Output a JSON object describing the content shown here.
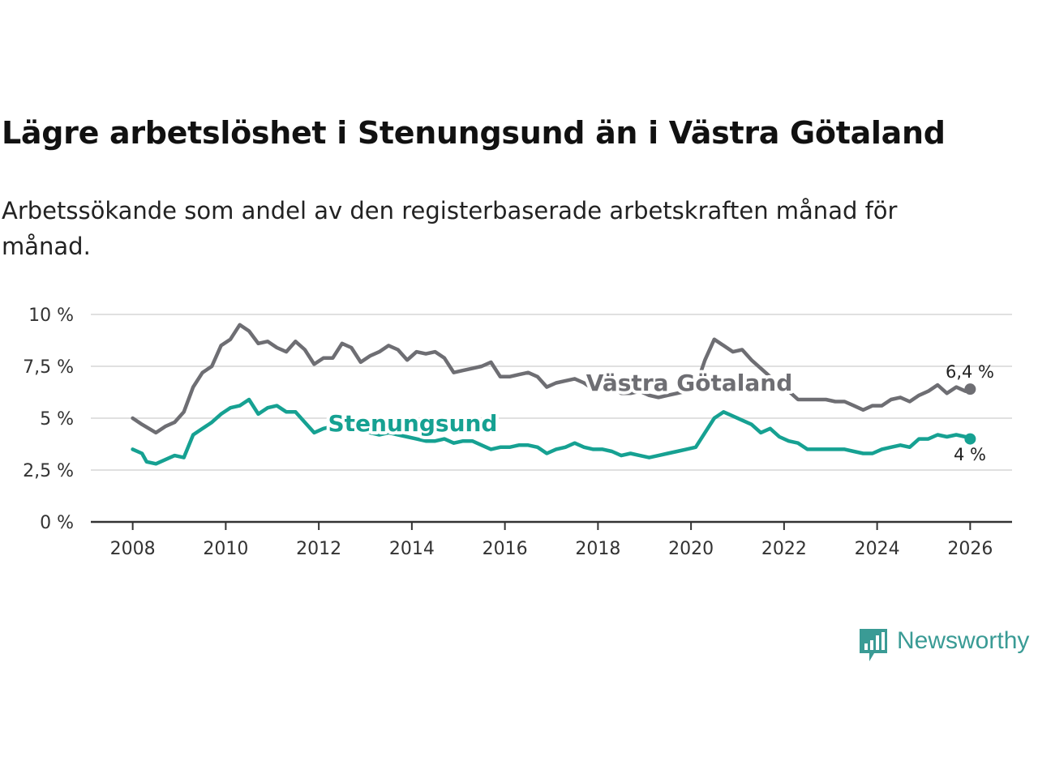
{
  "header": {
    "title": "Lägre arbetslöshet i Stenungsund än i Västra Götaland",
    "subtitle": "Arbetssökande som andel av den registerbaserade arbetskraften månad för månad."
  },
  "branding": {
    "name": "Newsworthy",
    "color": "#3a9b95"
  },
  "chart_data": {
    "type": "line",
    "x_ticks": [
      "2008",
      "2010",
      "2012",
      "2014",
      "2016",
      "2018",
      "2020",
      "2022",
      "2024",
      "2026"
    ],
    "y_ticks": [
      "0 %",
      "2,5 %",
      "5 %",
      "7,5 %",
      "10 %"
    ],
    "ylim": [
      0,
      10
    ],
    "xlim": [
      2007.1,
      2026.9
    ],
    "grid": true,
    "series": [
      {
        "name": "Västra Götaland",
        "color": "#6e6e73",
        "end_label": "6,4 %",
        "points": [
          [
            2008.0,
            5.0
          ],
          [
            2008.2,
            4.7
          ],
          [
            2008.5,
            4.3
          ],
          [
            2008.7,
            4.6
          ],
          [
            2008.9,
            4.8
          ],
          [
            2009.1,
            5.3
          ],
          [
            2009.3,
            6.5
          ],
          [
            2009.5,
            7.2
          ],
          [
            2009.7,
            7.5
          ],
          [
            2009.9,
            8.5
          ],
          [
            2010.1,
            8.8
          ],
          [
            2010.3,
            9.5
          ],
          [
            2010.5,
            9.2
          ],
          [
            2010.7,
            8.6
          ],
          [
            2010.9,
            8.7
          ],
          [
            2011.1,
            8.4
          ],
          [
            2011.3,
            8.2
          ],
          [
            2011.5,
            8.7
          ],
          [
            2011.7,
            8.3
          ],
          [
            2011.9,
            7.6
          ],
          [
            2012.1,
            7.9
          ],
          [
            2012.3,
            7.9
          ],
          [
            2012.5,
            8.6
          ],
          [
            2012.7,
            8.4
          ],
          [
            2012.9,
            7.7
          ],
          [
            2013.1,
            8.0
          ],
          [
            2013.3,
            8.2
          ],
          [
            2013.5,
            8.5
          ],
          [
            2013.7,
            8.3
          ],
          [
            2013.9,
            7.8
          ],
          [
            2014.1,
            8.2
          ],
          [
            2014.3,
            8.1
          ],
          [
            2014.5,
            8.2
          ],
          [
            2014.7,
            7.9
          ],
          [
            2014.9,
            7.2
          ],
          [
            2015.1,
            7.3
          ],
          [
            2015.3,
            7.4
          ],
          [
            2015.5,
            7.5
          ],
          [
            2015.7,
            7.7
          ],
          [
            2015.9,
            7.0
          ],
          [
            2016.1,
            7.0
          ],
          [
            2016.3,
            7.1
          ],
          [
            2016.5,
            7.2
          ],
          [
            2016.7,
            7.0
          ],
          [
            2016.9,
            6.5
          ],
          [
            2017.1,
            6.7
          ],
          [
            2017.3,
            6.8
          ],
          [
            2017.5,
            6.9
          ],
          [
            2017.7,
            6.7
          ],
          [
            2017.9,
            6.4
          ],
          [
            2018.1,
            6.5
          ],
          [
            2018.3,
            6.5
          ],
          [
            2018.5,
            6.2
          ],
          [
            2018.7,
            6.2
          ],
          [
            2018.9,
            6.3
          ],
          [
            2019.1,
            6.1
          ],
          [
            2019.3,
            6.0
          ],
          [
            2019.5,
            6.1
          ],
          [
            2019.7,
            6.2
          ],
          [
            2019.9,
            6.3
          ],
          [
            2020.1,
            6.5
          ],
          [
            2020.3,
            7.8
          ],
          [
            2020.5,
            8.8
          ],
          [
            2020.7,
            8.5
          ],
          [
            2020.9,
            8.2
          ],
          [
            2021.1,
            8.3
          ],
          [
            2021.3,
            7.8
          ],
          [
            2021.5,
            7.4
          ],
          [
            2021.7,
            7.0
          ],
          [
            2021.9,
            6.7
          ],
          [
            2022.1,
            6.3
          ],
          [
            2022.3,
            5.9
          ],
          [
            2022.5,
            5.9
          ],
          [
            2022.7,
            5.9
          ],
          [
            2022.9,
            5.9
          ],
          [
            2023.1,
            5.8
          ],
          [
            2023.3,
            5.8
          ],
          [
            2023.5,
            5.6
          ],
          [
            2023.7,
            5.4
          ],
          [
            2023.9,
            5.6
          ],
          [
            2024.1,
            5.6
          ],
          [
            2024.3,
            5.9
          ],
          [
            2024.5,
            6.0
          ],
          [
            2024.7,
            5.8
          ],
          [
            2024.9,
            6.1
          ],
          [
            2025.1,
            6.3
          ],
          [
            2025.3,
            6.6
          ],
          [
            2025.5,
            6.2
          ],
          [
            2025.7,
            6.5
          ],
          [
            2025.9,
            6.3
          ],
          [
            2026.0,
            6.4
          ]
        ]
      },
      {
        "name": "Stenungsund",
        "color": "#16a192",
        "end_label": "4 %",
        "points": [
          [
            2008.0,
            3.5
          ],
          [
            2008.2,
            3.3
          ],
          [
            2008.3,
            2.9
          ],
          [
            2008.5,
            2.8
          ],
          [
            2008.7,
            3.0
          ],
          [
            2008.9,
            3.2
          ],
          [
            2009.1,
            3.1
          ],
          [
            2009.3,
            4.2
          ],
          [
            2009.5,
            4.5
          ],
          [
            2009.7,
            4.8
          ],
          [
            2009.9,
            5.2
          ],
          [
            2010.1,
            5.5
          ],
          [
            2010.3,
            5.6
          ],
          [
            2010.5,
            5.9
          ],
          [
            2010.7,
            5.2
          ],
          [
            2010.9,
            5.5
          ],
          [
            2011.1,
            5.6
          ],
          [
            2011.3,
            5.3
          ],
          [
            2011.5,
            5.3
          ],
          [
            2011.7,
            4.8
          ],
          [
            2011.9,
            4.3
          ],
          [
            2012.1,
            4.5
          ],
          [
            2012.3,
            4.6
          ],
          [
            2012.5,
            4.8
          ],
          [
            2012.7,
            4.6
          ],
          [
            2012.9,
            4.4
          ],
          [
            2013.1,
            4.3
          ],
          [
            2013.3,
            4.2
          ],
          [
            2013.5,
            4.3
          ],
          [
            2013.7,
            4.2
          ],
          [
            2013.9,
            4.1
          ],
          [
            2014.1,
            4.0
          ],
          [
            2014.3,
            3.9
          ],
          [
            2014.5,
            3.9
          ],
          [
            2014.7,
            4.0
          ],
          [
            2014.9,
            3.8
          ],
          [
            2015.1,
            3.9
          ],
          [
            2015.3,
            3.9
          ],
          [
            2015.5,
            3.7
          ],
          [
            2015.7,
            3.5
          ],
          [
            2015.9,
            3.6
          ],
          [
            2016.1,
            3.6
          ],
          [
            2016.3,
            3.7
          ],
          [
            2016.5,
            3.7
          ],
          [
            2016.7,
            3.6
          ],
          [
            2016.9,
            3.3
          ],
          [
            2017.1,
            3.5
          ],
          [
            2017.3,
            3.6
          ],
          [
            2017.5,
            3.8
          ],
          [
            2017.7,
            3.6
          ],
          [
            2017.9,
            3.5
          ],
          [
            2018.1,
            3.5
          ],
          [
            2018.3,
            3.4
          ],
          [
            2018.5,
            3.2
          ],
          [
            2018.7,
            3.3
          ],
          [
            2018.9,
            3.2
          ],
          [
            2019.1,
            3.1
          ],
          [
            2019.3,
            3.2
          ],
          [
            2019.5,
            3.3
          ],
          [
            2019.7,
            3.4
          ],
          [
            2019.9,
            3.5
          ],
          [
            2020.1,
            3.6
          ],
          [
            2020.3,
            4.3
          ],
          [
            2020.5,
            5.0
          ],
          [
            2020.7,
            5.3
          ],
          [
            2020.9,
            5.1
          ],
          [
            2021.1,
            4.9
          ],
          [
            2021.3,
            4.7
          ],
          [
            2021.5,
            4.3
          ],
          [
            2021.7,
            4.5
          ],
          [
            2021.9,
            4.1
          ],
          [
            2022.1,
            3.9
          ],
          [
            2022.3,
            3.8
          ],
          [
            2022.5,
            3.5
          ],
          [
            2022.7,
            3.5
          ],
          [
            2022.9,
            3.5
          ],
          [
            2023.1,
            3.5
          ],
          [
            2023.3,
            3.5
          ],
          [
            2023.5,
            3.4
          ],
          [
            2023.7,
            3.3
          ],
          [
            2023.9,
            3.3
          ],
          [
            2024.1,
            3.5
          ],
          [
            2024.3,
            3.6
          ],
          [
            2024.5,
            3.7
          ],
          [
            2024.7,
            3.6
          ],
          [
            2024.9,
            4.0
          ],
          [
            2025.1,
            4.0
          ],
          [
            2025.3,
            4.2
          ],
          [
            2025.5,
            4.1
          ],
          [
            2025.7,
            4.2
          ],
          [
            2025.9,
            4.1
          ],
          [
            2026.0,
            4.0
          ]
        ]
      }
    ]
  }
}
